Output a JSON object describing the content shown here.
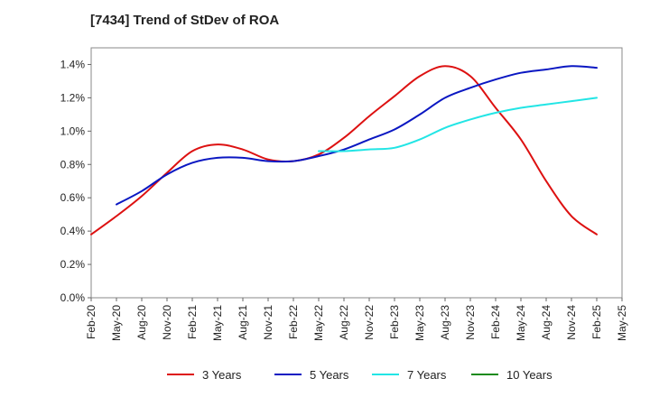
{
  "chart_data": {
    "type": "line",
    "title": "[7434]  Trend of StDev of ROA",
    "x_tick_labels": [
      "Feb-20",
      "May-20",
      "Aug-20",
      "Nov-20",
      "Feb-21",
      "May-21",
      "Aug-21",
      "Nov-21",
      "Feb-22",
      "May-22",
      "Aug-22",
      "Nov-22",
      "Feb-23",
      "May-23",
      "Aug-23",
      "Nov-23",
      "Feb-24",
      "May-24",
      "Aug-24",
      "Nov-24",
      "Feb-25",
      "May-25"
    ],
    "y_tick_labels": [
      "0.0%",
      "0.2%",
      "0.4%",
      "0.6%",
      "0.8%",
      "1.0%",
      "1.2%",
      "1.4%"
    ],
    "ylim": [
      0,
      1.5
    ],
    "y_unit": "%",
    "grid": true,
    "legend_position": "bottom",
    "series": [
      {
        "name": "3 Years",
        "color": "#dd1111",
        "x": [
          "Feb-20",
          "May-20",
          "Aug-20",
          "Nov-20",
          "Feb-21",
          "May-21",
          "Aug-21",
          "Nov-21",
          "Feb-22",
          "May-22",
          "Aug-22",
          "Nov-22",
          "Feb-23",
          "May-23",
          "Aug-23",
          "Nov-23",
          "Feb-24",
          "May-24",
          "Aug-24",
          "Nov-24",
          "Feb-25"
        ],
        "values": [
          0.38,
          0.49,
          0.61,
          0.75,
          0.88,
          0.92,
          0.89,
          0.83,
          0.82,
          0.86,
          0.96,
          1.09,
          1.21,
          1.33,
          1.39,
          1.33,
          1.14,
          0.95,
          0.7,
          0.49,
          0.38
        ]
      },
      {
        "name": "5 Years",
        "color": "#0a17c2",
        "x": [
          "May-20",
          "Aug-20",
          "Nov-20",
          "Feb-21",
          "May-21",
          "Aug-21",
          "Nov-21",
          "Feb-22",
          "May-22",
          "Aug-22",
          "Nov-22",
          "Feb-23",
          "May-23",
          "Aug-23",
          "Nov-23",
          "Feb-24",
          "May-24",
          "Aug-24",
          "Nov-24",
          "Feb-25"
        ],
        "values": [
          0.56,
          0.64,
          0.74,
          0.81,
          0.84,
          0.84,
          0.82,
          0.82,
          0.85,
          0.89,
          0.95,
          1.01,
          1.1,
          1.2,
          1.26,
          1.31,
          1.35,
          1.37,
          1.39,
          1.38
        ]
      },
      {
        "name": "7 Years",
        "color": "#22e5e5",
        "x": [
          "May-22",
          "Aug-22",
          "Nov-22",
          "Feb-23",
          "May-23",
          "Aug-23",
          "Nov-23",
          "Feb-24",
          "May-24",
          "Aug-24",
          "Nov-24",
          "Feb-25"
        ],
        "values": [
          0.88,
          0.88,
          0.89,
          0.9,
          0.95,
          1.02,
          1.07,
          1.11,
          1.14,
          1.16,
          1.18,
          1.2
        ]
      },
      {
        "name": "10 Years",
        "color": "#1a8a1a",
        "x": [],
        "values": []
      }
    ]
  }
}
